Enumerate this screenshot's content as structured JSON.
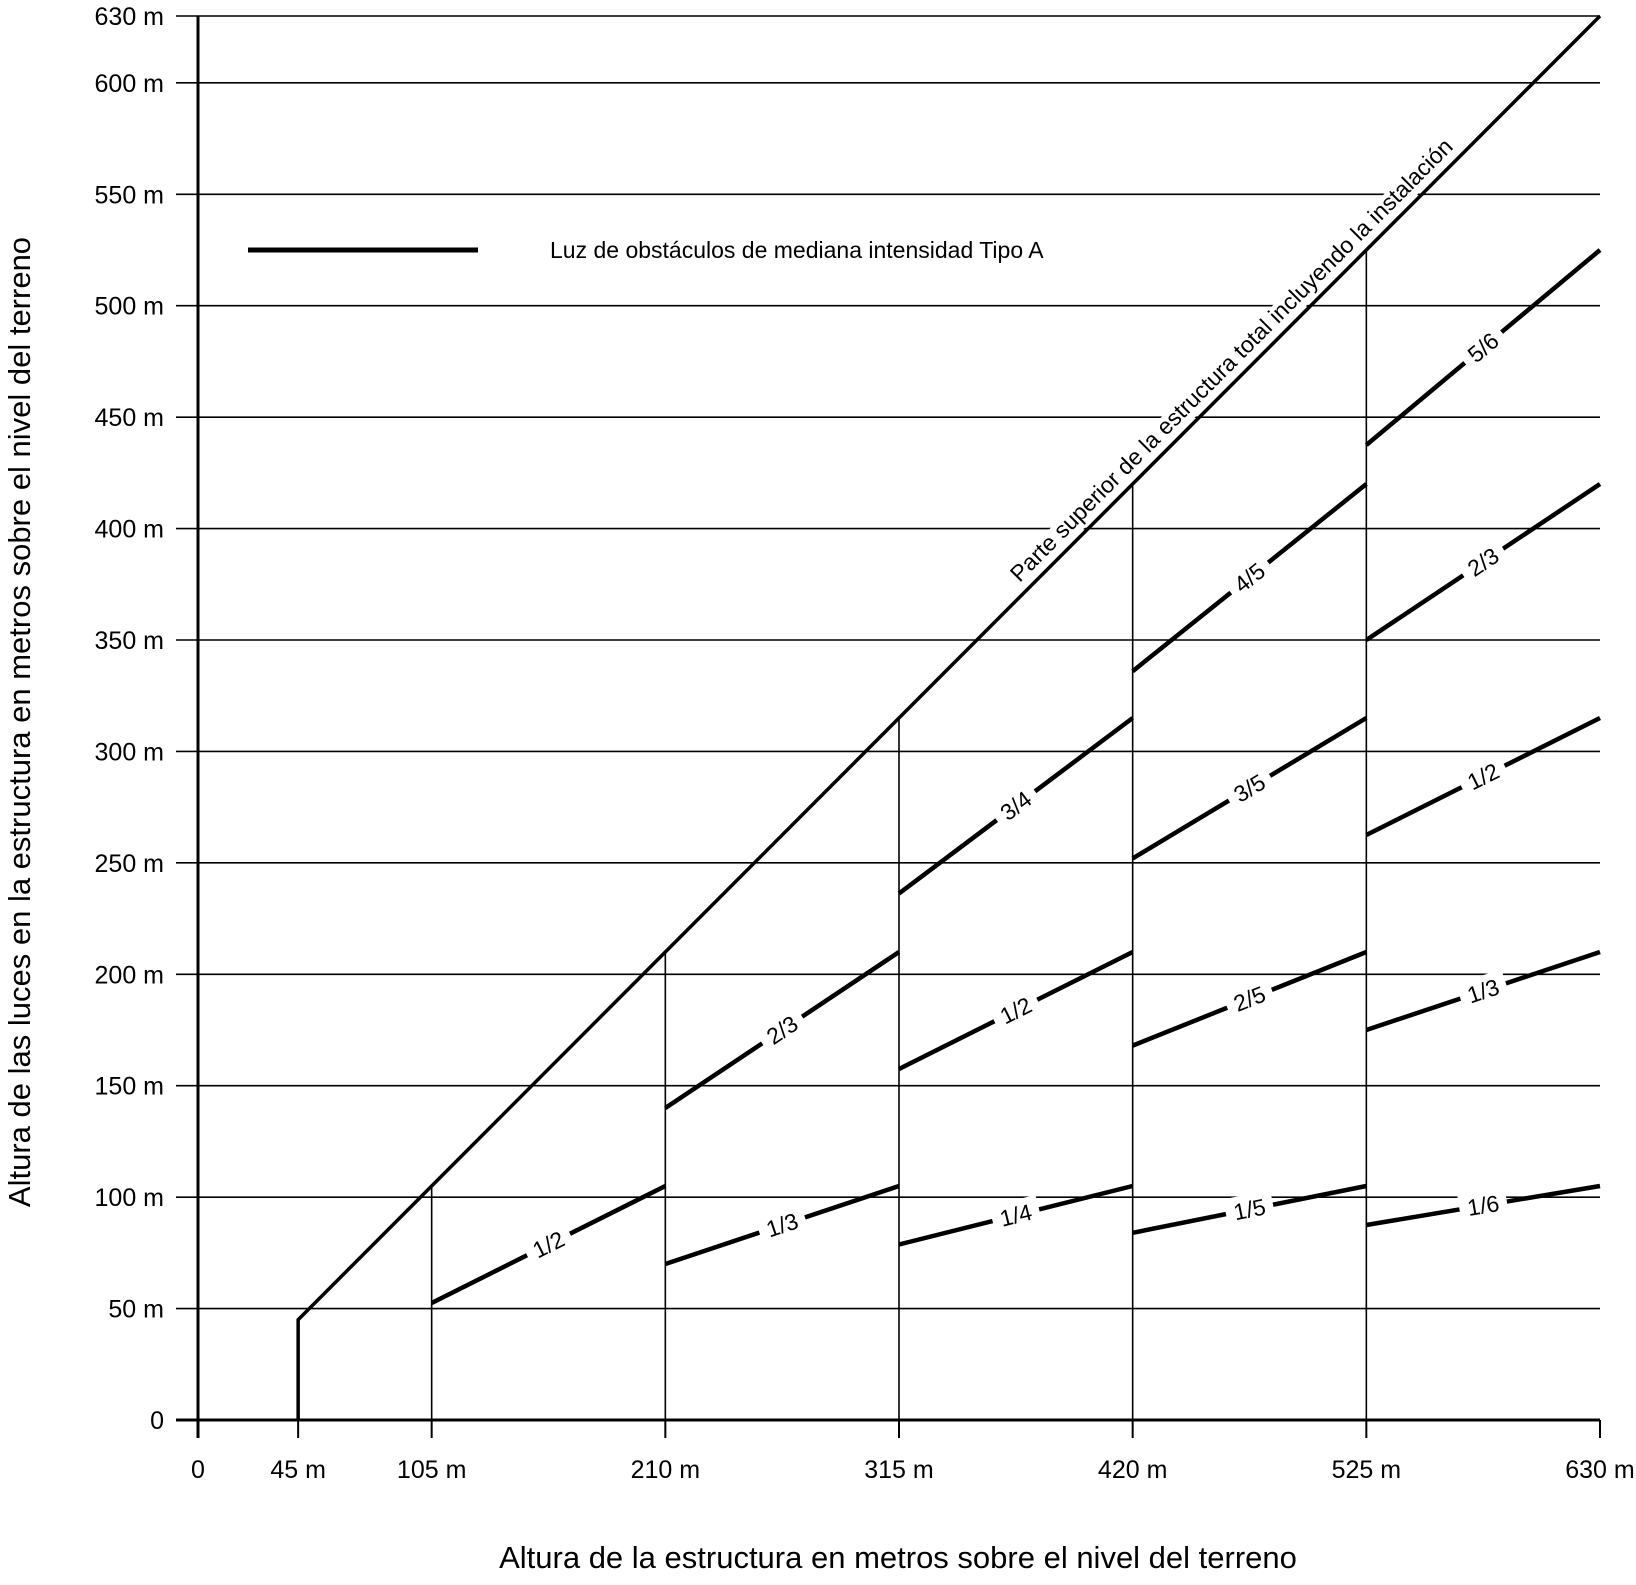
{
  "chart_data": {
    "type": "line",
    "title": "",
    "xlabel": "Altura de la estructura en metros sobre el nivel del terreno",
    "ylabel": "Altura de las luces en la estructura en metros sobre el nivel del terreno",
    "xlim": [
      0,
      630
    ],
    "ylim": [
      0,
      630
    ],
    "grid": true,
    "x_ticks": [
      {
        "value": 0,
        "label": "0"
      },
      {
        "value": 45,
        "label": "45 m"
      },
      {
        "value": 105,
        "label": "105 m"
      },
      {
        "value": 210,
        "label": "210 m"
      },
      {
        "value": 315,
        "label": "315 m"
      },
      {
        "value": 420,
        "label": "420 m"
      },
      {
        "value": 525,
        "label": "525 m"
      },
      {
        "value": 630,
        "label": "630 m"
      }
    ],
    "y_ticks": [
      {
        "value": 0,
        "label": "0"
      },
      {
        "value": 50,
        "label": "50 m"
      },
      {
        "value": 100,
        "label": "100 m"
      },
      {
        "value": 150,
        "label": "150 m"
      },
      {
        "value": 200,
        "label": "200 m"
      },
      {
        "value": 250,
        "label": "250 m"
      },
      {
        "value": 300,
        "label": "300 m"
      },
      {
        "value": 350,
        "label": "350 m"
      },
      {
        "value": 400,
        "label": "400 m"
      },
      {
        "value": 450,
        "label": "450 m"
      },
      {
        "value": 500,
        "label": "500 m"
      },
      {
        "value": 550,
        "label": "550 m"
      },
      {
        "value": 600,
        "label": "600 m"
      },
      {
        "value": 630,
        "label": "630 m"
      }
    ],
    "legend": {
      "label": "Luz de obstáculos de mediana intensidad Tipo  A",
      "position": "top-left"
    },
    "top_line": {
      "label": "Parte superior de la estructura total incluyendo la instalación",
      "points": [
        [
          45,
          0
        ],
        [
          45,
          45
        ],
        [
          630,
          630
        ]
      ]
    },
    "band_dividers": [
      105,
      210,
      315,
      420,
      525
    ],
    "series": [
      {
        "label": "1/2",
        "x": [
          105,
          210
        ],
        "y": [
          52.5,
          105
        ]
      },
      {
        "label": "2/3",
        "x": [
          210,
          315
        ],
        "y": [
          140,
          210
        ]
      },
      {
        "label": "1/3",
        "x": [
          210,
          315
        ],
        "y": [
          70,
          105
        ]
      },
      {
        "label": "3/4",
        "x": [
          315,
          420
        ],
        "y": [
          236.25,
          315
        ]
      },
      {
        "label": "1/2",
        "x": [
          315,
          420
        ],
        "y": [
          157.5,
          210
        ]
      },
      {
        "label": "1/4",
        "x": [
          315,
          420
        ],
        "y": [
          78.75,
          105
        ]
      },
      {
        "label": "4/5",
        "x": [
          420,
          525
        ],
        "y": [
          336,
          420
        ]
      },
      {
        "label": "3/5",
        "x": [
          420,
          525
        ],
        "y": [
          252,
          315
        ]
      },
      {
        "label": "2/5",
        "x": [
          420,
          525
        ],
        "y": [
          168,
          210
        ]
      },
      {
        "label": "1/5",
        "x": [
          420,
          525
        ],
        "y": [
          84,
          105
        ]
      },
      {
        "label": "5/6",
        "x": [
          525,
          630
        ],
        "y": [
          437.5,
          525
        ]
      },
      {
        "label": "2/3",
        "x": [
          525,
          630
        ],
        "y": [
          350,
          420
        ]
      },
      {
        "label": "1/2",
        "x": [
          525,
          630
        ],
        "y": [
          262.5,
          315
        ]
      },
      {
        "label": "1/3",
        "x": [
          525,
          630
        ],
        "y": [
          175,
          210
        ]
      },
      {
        "label": "1/6",
        "x": [
          525,
          630
        ],
        "y": [
          87.5,
          105
        ]
      }
    ]
  }
}
